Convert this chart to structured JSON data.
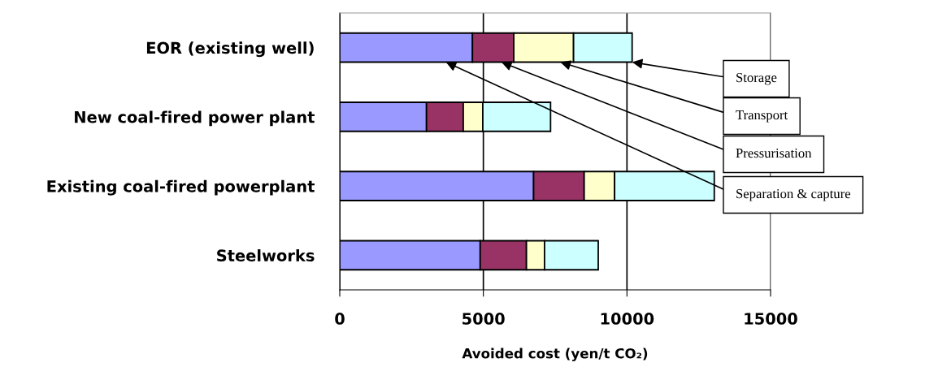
{
  "chart_data": {
    "type": "bar",
    "orientation": "horizontal",
    "stacked": true,
    "categories": [
      "EOR (existing well)",
      "New coal-fired power plant",
      "Existing coal-fired powerplant",
      "Steelworks"
    ],
    "series": [
      {
        "name": "Separation & capture",
        "color": "#9999ff",
        "values": [
          4620,
          3020,
          6750,
          4890
        ]
      },
      {
        "name": "Pressurisation",
        "color": "#993366",
        "values": [
          1440,
          1280,
          1760,
          1610
        ]
      },
      {
        "name": "Transport",
        "color": "#ffffcc",
        "values": [
          2080,
          680,
          1060,
          630
        ]
      },
      {
        "name": "Storage",
        "color": "#ccffff",
        "values": [
          2040,
          2360,
          3470,
          1870
        ]
      }
    ],
    "xlim": [
      0,
      15000
    ],
    "xticks": [
      0,
      5000,
      10000,
      15000
    ],
    "xlabel": "Avoided cost (yen/t CO₂)",
    "grid": "x"
  }
}
